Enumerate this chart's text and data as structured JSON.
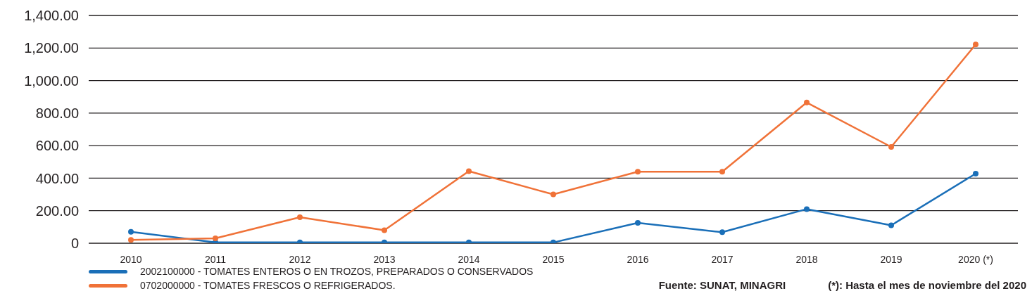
{
  "chart_data": {
    "type": "line",
    "categories": [
      "2010",
      "2011",
      "2012",
      "2013",
      "2014",
      "2015",
      "2016",
      "2017",
      "2018",
      "2019",
      "2020 (*)"
    ],
    "series": [
      {
        "name": "2002100000 - TOMATES ENTEROS O EN TROZOS, PREPARADOS O CONSERVADOS",
        "color": "#1a6fb8",
        "values": [
          70,
          5,
          5,
          5,
          5,
          5,
          125,
          68,
          210,
          110,
          428
        ]
      },
      {
        "name": "0702000000 - TOMATES FRESCOS O REFRIGERADOS.",
        "color": "#f07238",
        "values": [
          20,
          30,
          160,
          80,
          443,
          300,
          440,
          440,
          865,
          592,
          1222
        ]
      }
    ],
    "ylim": [
      0,
      1400
    ],
    "yticks": [
      {
        "value": 0,
        "label": "0"
      },
      {
        "value": 200,
        "label": "200.00"
      },
      {
        "value": 400,
        "label": "400.00"
      },
      {
        "value": 600,
        "label": "600.00"
      },
      {
        "value": 800,
        "label": "800.00"
      },
      {
        "value": 1000,
        "label": "1,000.00"
      },
      {
        "value": 1200,
        "label": "1,200.00"
      },
      {
        "value": 1400,
        "label": "1,400.00"
      }
    ],
    "grid": "y",
    "legend": "bottom",
    "marker": "circle",
    "line_style": "solid",
    "annotations": [
      "Fuente: SUNAT, MINAGRI",
      "(*): Hasta el mes de noviembre del 2020"
    ]
  }
}
